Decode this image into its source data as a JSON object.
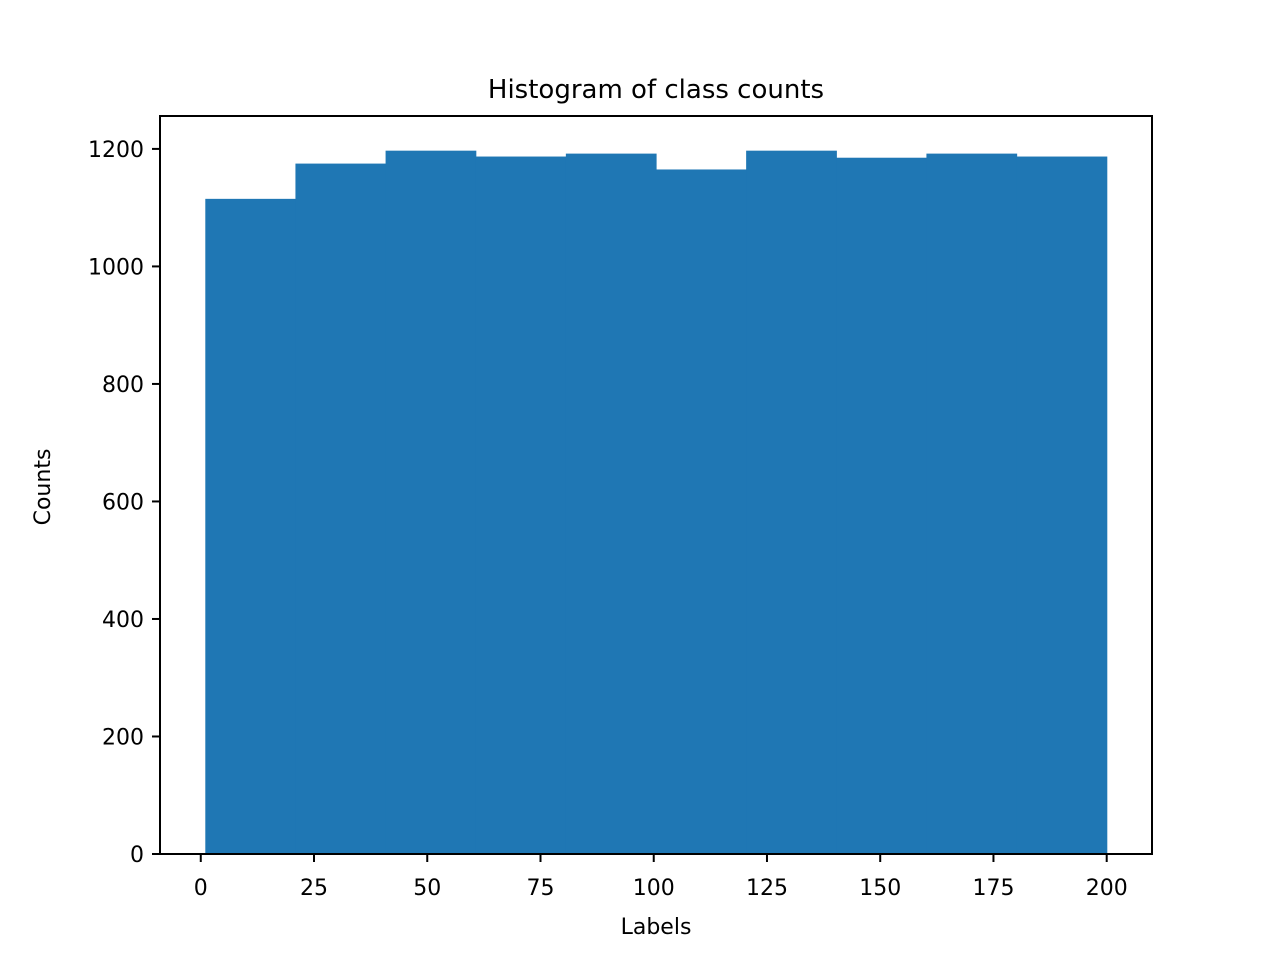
{
  "chart_data": {
    "type": "bar",
    "title": "Histogram of class counts",
    "xlabel": "Labels",
    "ylabel": "Counts",
    "bin_edges": [
      1,
      20.9,
      40.8,
      60.7,
      80.6,
      100.5,
      120.4,
      140.3,
      160.2,
      180.1,
      200
    ],
    "values": [
      1115,
      1175,
      1197,
      1187,
      1192,
      1165,
      1197,
      1185,
      1192,
      1187
    ],
    "xlim": [
      -9,
      210
    ],
    "ylim": [
      0,
      1256
    ],
    "xticks": [
      0,
      25,
      50,
      75,
      100,
      125,
      150,
      175,
      200
    ],
    "xtick_labels": [
      "0",
      "25",
      "50",
      "75",
      "100",
      "125",
      "150",
      "175",
      "200"
    ],
    "yticks": [
      0,
      200,
      400,
      600,
      800,
      1000,
      1200
    ],
    "ytick_labels": [
      "0",
      "200",
      "400",
      "600",
      "800",
      "1000",
      "1200"
    ],
    "bar_color": "#1f77b4",
    "grid": false,
    "legend": "none"
  }
}
